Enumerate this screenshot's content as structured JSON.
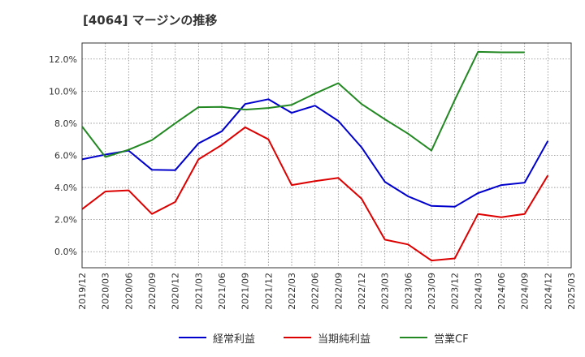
{
  "title": "[4064]  マージンの推移",
  "chart_data": {
    "type": "line",
    "title": "[4064]  マージンの推移",
    "xlabel": "",
    "ylabel": "",
    "x": [
      "2019/12",
      "2020/03",
      "2020/06",
      "2020/09",
      "2020/12",
      "2021/03",
      "2021/06",
      "2021/09",
      "2021/12",
      "2022/03",
      "2022/06",
      "2022/09",
      "2022/12",
      "2023/03",
      "2023/06",
      "2023/09",
      "2023/12",
      "2024/03",
      "2024/06",
      "2024/09",
      "2024/12",
      "2025/03"
    ],
    "yticks": [
      "0.0%",
      "2.0%",
      "4.0%",
      "6.0%",
      "8.0%",
      "10.0%",
      "12.0%"
    ],
    "ylim": [
      -1.0,
      13.0
    ],
    "grid": true,
    "legend_position": "bottom",
    "series": [
      {
        "name": "経常利益",
        "color": "#0000cc",
        "values": [
          5.75,
          6.05,
          6.3,
          5.1,
          5.08,
          6.75,
          7.5,
          9.2,
          9.5,
          8.65,
          9.1,
          8.15,
          6.5,
          4.35,
          3.45,
          2.85,
          2.8,
          3.65,
          4.15,
          4.3,
          6.9,
          null
        ]
      },
      {
        "name": "当期純利益",
        "color": "#dd0000",
        "values": [
          2.65,
          3.75,
          3.82,
          2.35,
          3.1,
          5.75,
          6.65,
          7.75,
          7.0,
          4.15,
          4.4,
          4.6,
          3.3,
          0.75,
          0.45,
          -0.55,
          -0.42,
          2.35,
          2.15,
          2.35,
          4.75,
          null
        ]
      },
      {
        "name": "営業CF",
        "color": "#228822",
        "values": [
          7.8,
          5.9,
          6.35,
          6.95,
          8.0,
          9.0,
          9.02,
          8.85,
          8.95,
          9.15,
          9.85,
          10.5,
          9.2,
          8.25,
          7.35,
          6.3,
          9.45,
          12.45,
          12.42,
          12.42,
          null,
          null
        ]
      }
    ]
  }
}
